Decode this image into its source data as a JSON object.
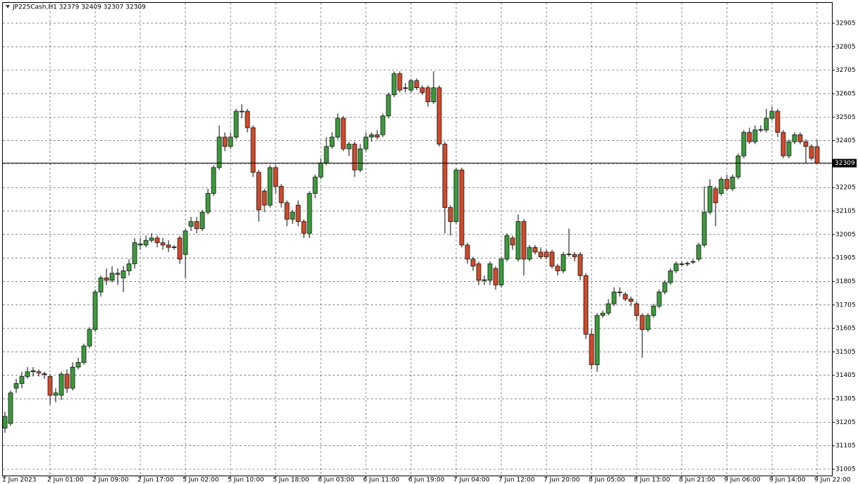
{
  "chart_data": {
    "type": "candlestick",
    "title": "JP225Cash,H1  32379 32409 32307 32309",
    "categories": [
      "1 Jun 2023",
      null,
      null,
      null,
      null,
      null,
      null,
      null,
      "2 Jun 01:00",
      null,
      null,
      null,
      null,
      null,
      null,
      null,
      "2 Jun 09:00",
      null,
      null,
      null,
      null,
      null,
      null,
      null,
      "2 Jun 17:00",
      null,
      null,
      null,
      null,
      null,
      null,
      null,
      "5 Jun 02:00",
      null,
      null,
      null,
      null,
      null,
      null,
      null,
      "5 Jun 10:00",
      null,
      null,
      null,
      null,
      null,
      null,
      null,
      "5 Jun 18:00",
      null,
      null,
      null,
      null,
      null,
      null,
      null,
      "6 Jun 03:00",
      null,
      null,
      null,
      null,
      null,
      null,
      null,
      "6 Jun 11:00",
      null,
      null,
      null,
      null,
      null,
      null,
      null,
      "6 Jun 19:00",
      null,
      null,
      null,
      null,
      null,
      null,
      null,
      "7 Jun 04:00",
      null,
      null,
      null,
      null,
      null,
      null,
      null,
      "7 Jun 12:00",
      null,
      null,
      null,
      null,
      null,
      null,
      null,
      "7 Jun 20:00",
      null,
      null,
      null,
      null,
      null,
      null,
      null,
      "8 Jun 05:00",
      null,
      null,
      null,
      null,
      null,
      null,
      null,
      "8 Jun 13:00",
      null,
      null,
      null,
      null,
      null,
      null,
      null,
      "8 Jun 21:00",
      null,
      null,
      null,
      null,
      null,
      null,
      null,
      "9 Jun 06:00",
      null,
      null,
      null,
      null,
      null,
      null,
      null,
      "9 Jun 14:00",
      null,
      null,
      null,
      null,
      null,
      null,
      null,
      "9 Jun 22:00"
    ],
    "open": [
      31180,
      31200,
      31350,
      31370,
      31400,
      31420,
      31420,
      31410,
      31400,
      31320,
      31320,
      31410,
      31350,
      31440,
      31460,
      31530,
      31600,
      31760,
      31820,
      31810,
      31840,
      31820,
      31850,
      31880,
      31960,
      31960,
      31980,
      31990,
      31970,
      31960,
      31950,
      31990,
      31920,
      32040,
      32060,
      32030,
      32100,
      32180,
      32290,
      32420,
      32380,
      32420,
      32530,
      32530,
      32460,
      32270,
      32190,
      32130,
      32290,
      32210,
      32140,
      32070,
      32130,
      32060,
      32010,
      32180,
      32250,
      32310,
      32380,
      32420,
      32500,
      32370,
      32390,
      32280,
      32370,
      32420,
      32430,
      32430,
      32510,
      32600,
      32690,
      32630,
      32620,
      32660,
      32630,
      32630,
      32570,
      32630,
      32390,
      32120,
      32060,
      32280,
      31960,
      31900,
      31880,
      31810,
      31810,
      31860,
      31790,
      31900,
      31990,
      31900,
      32060,
      31900,
      31950,
      31930,
      31930,
      31930,
      31870,
      31850,
      31920,
      31920,
      31920,
      31830,
      31580,
      31450,
      31660,
      31670,
      31710,
      31760,
      31750,
      31730,
      31710,
      31660,
      31600,
      31660,
      31700,
      31760,
      31800,
      31850,
      31880,
      31880,
      31890,
      31900,
      31960,
      32100,
      32200,
      32180,
      32240,
      32200,
      32250,
      32340,
      32440,
      32400,
      32450,
      32450,
      32500,
      32530,
      32440,
      32340,
      32400,
      32430,
      32400,
      32380,
      32379
    ],
    "high": [
      31250,
      31340,
      31390,
      31420,
      31440,
      31440,
      31430,
      31420,
      31410,
      31350,
      31420,
      31430,
      31460,
      31480,
      31540,
      31610,
      31770,
      31830,
      31860,
      31870,
      31860,
      31870,
      31900,
      31990,
      31990,
      32000,
      32010,
      32000,
      31990,
      31980,
      31960,
      32000,
      32030,
      32080,
      32080,
      32110,
      32200,
      32300,
      32470,
      32440,
      32440,
      32540,
      32560,
      32540,
      32470,
      32280,
      32200,
      32300,
      32300,
      32220,
      32150,
      32110,
      32150,
      32070,
      32190,
      32260,
      32330,
      32420,
      32440,
      32520,
      32510,
      32400,
      32400,
      32390,
      32440,
      32440,
      32450,
      32520,
      32610,
      32700,
      32700,
      32650,
      32670,
      32670,
      32640,
      32640,
      32700,
      32640,
      32400,
      32130,
      32290,
      32290,
      31970,
      31910,
      31890,
      31830,
      31890,
      31870,
      31910,
      32010,
      32000,
      32090,
      32070,
      31960,
      31960,
      31950,
      31940,
      31940,
      31880,
      31930,
      32030,
      31930,
      31930,
      31840,
      31600,
      31670,
      31680,
      31730,
      31780,
      31780,
      31760,
      31740,
      31720,
      31670,
      31670,
      31710,
      31770,
      31810,
      31860,
      31890,
      31890,
      31890,
      31900,
      31970,
      32210,
      32240,
      32210,
      32250,
      32260,
      32260,
      32350,
      32450,
      32460,
      32470,
      32470,
      32540,
      32550,
      32540,
      32450,
      32410,
      32440,
      32440,
      32410,
      32390,
      32409
    ],
    "low": [
      31160,
      31190,
      31330,
      31350,
      31390,
      31400,
      31400,
      31390,
      31280,
      31290,
      31300,
      31330,
      31340,
      31430,
      31450,
      31520,
      31590,
      31740,
      31790,
      31800,
      31790,
      31760,
      31830,
      31860,
      31940,
      31950,
      31970,
      31950,
      31940,
      31930,
      31940,
      31880,
      31820,
      32020,
      32010,
      32020,
      32090,
      32170,
      32280,
      32360,
      32370,
      32410,
      32500,
      32440,
      32250,
      32060,
      32100,
      32120,
      32180,
      32120,
      32040,
      32050,
      32040,
      31990,
      31990,
      32160,
      32240,
      32300,
      32370,
      32410,
      32360,
      32340,
      32250,
      32270,
      32360,
      32400,
      32410,
      32420,
      32500,
      32590,
      32610,
      32610,
      32610,
      32620,
      32600,
      32550,
      32560,
      32380,
      32010,
      32000,
      32050,
      31950,
      31880,
      31850,
      31790,
      31790,
      31790,
      31770,
      31780,
      31890,
      31940,
      31890,
      31830,
      31890,
      31920,
      31900,
      31900,
      31860,
      31830,
      31840,
      31910,
      31890,
      31810,
      31560,
      31430,
      31420,
      31650,
      31660,
      31700,
      31740,
      31720,
      31700,
      31640,
      31480,
      31590,
      31650,
      31690,
      31750,
      31790,
      31840,
      31870,
      31870,
      31880,
      31890,
      31950,
      32090,
      32040,
      32170,
      32190,
      32190,
      32240,
      32330,
      32390,
      32390,
      32440,
      32440,
      32490,
      32420,
      32330,
      32330,
      32390,
      32390,
      32310,
      32320,
      32307
    ],
    "close": [
      31230,
      31330,
      31370,
      31400,
      31420,
      31425,
      31415,
      31412,
      31320,
      31330,
      31410,
      31350,
      31440,
      31460,
      31530,
      31600,
      31760,
      31820,
      31810,
      31840,
      31835,
      31850,
      31880,
      31970,
      31965,
      31980,
      31990,
      31970,
      31960,
      31950,
      31952,
      31900,
      32020,
      32060,
      32030,
      32100,
      32180,
      32290,
      32420,
      32380,
      32420,
      32530,
      32528,
      32460,
      32270,
      32110,
      32130,
      32290,
      32210,
      32140,
      32070,
      32100,
      32060,
      32010,
      32180,
      32250,
      32310,
      32380,
      32420,
      32500,
      32370,
      32390,
      32280,
      32370,
      32420,
      32430,
      32420,
      32510,
      32600,
      32690,
      32620,
      32628,
      32660,
      32630,
      32610,
      32570,
      32630,
      32390,
      32120,
      32060,
      32280,
      31960,
      31900,
      31870,
      31810,
      31812,
      31880,
      31790,
      31900,
      32000,
      31960,
      32060,
      31900,
      31950,
      31930,
      31910,
      31910,
      31870,
      31850,
      31920,
      31922,
      31910,
      31830,
      31580,
      31450,
      31660,
      31670,
      31710,
      31760,
      31758,
      31730,
      31720,
      31660,
      31600,
      31660,
      31700,
      31760,
      31800,
      31850,
      31880,
      31878,
      31882,
      31888,
      31960,
      32100,
      32210,
      32140,
      32240,
      32200,
      32250,
      32340,
      32440,
      32400,
      32450,
      32452,
      32500,
      32530,
      32440,
      32340,
      32400,
      32430,
      32400,
      32380,
      32330,
      32309
    ],
    "up_color": "#3d9a3d",
    "down_color": "#cf4b2c",
    "last_price": 32309,
    "ylim": [
      30978,
      32992
    ],
    "yticks": [
      31005,
      31105,
      31205,
      31305,
      31405,
      31505,
      31605,
      31705,
      31805,
      31905,
      32005,
      32105,
      32205,
      32305,
      32405,
      32505,
      32605,
      32705,
      32805,
      32905
    ],
    "grid": true
  }
}
